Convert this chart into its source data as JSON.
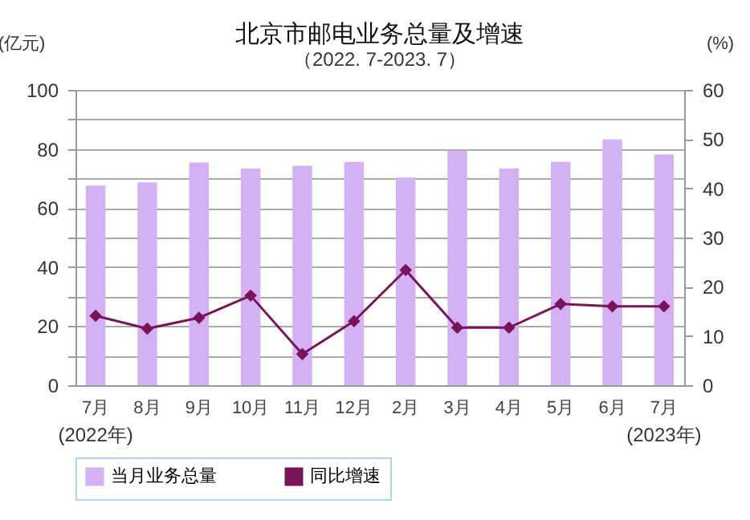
{
  "chart_data": {
    "type": "bar",
    "title": "北京市邮电业务总量及增速",
    "subtitle": "（2022. 7-2023. 7）",
    "ylabel": "(亿元)",
    "y2label": "(%)",
    "categories": [
      "7月",
      "8月",
      "9月",
      "10月",
      "11月",
      "12月",
      "2月",
      "3月",
      "4月",
      "5月",
      "6月",
      "7月"
    ],
    "series": [
      {
        "name": "当月业务总量",
        "type": "bar",
        "color": "#d4b0f4",
        "values": [
          67.6,
          68.7,
          75.4,
          73.4,
          74.3,
          75.6,
          70.3,
          79.4,
          73.4,
          75.6,
          83.2,
          78.1
        ]
      },
      {
        "name": "同比增速",
        "type": "line",
        "axis": "y2",
        "color": "#7a1458",
        "values": [
          14.1,
          11.5,
          13.7,
          18.2,
          6.3,
          13.0,
          23.4,
          11.7,
          11.7,
          16.5,
          16.0,
          16.0
        ]
      }
    ],
    "ylim": [
      0,
      100
    ],
    "yticks": [
      0,
      {
        "value": 10,
        "label": null
      },
      20,
      {
        "value": 30,
        "label": null
      },
      40,
      {
        "value": 50,
        "label": null
      },
      60,
      {
        "value": 70,
        "label": null
      },
      80,
      {
        "value": 90,
        "label": null
      },
      100
    ],
    "y2lim": [
      0,
      60
    ],
    "y2ticks": [
      0,
      10,
      20,
      30,
      40,
      50,
      60
    ],
    "annotations": [
      "(2022年)",
      "(2023年)"
    ],
    "grid": "y",
    "legend": "bottom",
    "marker": "diamond",
    "line_style": "solid"
  }
}
